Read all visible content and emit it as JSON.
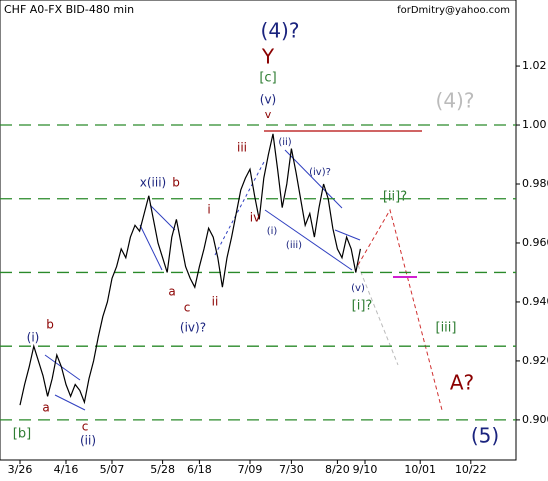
{
  "chart_data": {
    "type": "line",
    "title": "CHF A0-FX BID-480 min",
    "subtitle": "forDmitry@yahoo.com",
    "categories": [
      "3/26",
      null,
      null,
      null,
      null,
      null,
      null,
      null,
      null,
      null,
      "4/16",
      null,
      null,
      null,
      null,
      null,
      null,
      null,
      null,
      null,
      "5/07",
      null,
      null,
      null,
      null,
      null,
      null,
      null,
      null,
      null,
      null,
      "5/28",
      null,
      null,
      null,
      null,
      null,
      null,
      null,
      "6/18",
      null,
      null,
      null,
      null,
      null,
      null,
      null,
      null,
      null,
      null,
      "7/09",
      null,
      null,
      null,
      null,
      null,
      null,
      null,
      null,
      "7/30",
      null,
      null,
      null,
      null,
      null,
      null,
      null,
      null,
      null,
      "8/20",
      null,
      null,
      null,
      null,
      null,
      "9/10",
      null,
      null,
      null,
      null,
      null,
      null,
      null,
      null,
      null,
      null,
      null,
      "10/01",
      null,
      null,
      null,
      null,
      null,
      null,
      null,
      null,
      null,
      null,
      "10/22",
      null
    ],
    "series": [
      {
        "name": "CHF A0-FX",
        "color": "#000000",
        "values": [
          0.905,
          0.912,
          0.918,
          0.925,
          0.92,
          0.915,
          0.908,
          0.914,
          0.922,
          0.918,
          0.912,
          0.908,
          0.912,
          0.91,
          0.906,
          0.914,
          0.92,
          0.928,
          0.935,
          0.94,
          0.948,
          0.952,
          0.958,
          0.955,
          0.962,
          0.966,
          0.964,
          0.97,
          0.976,
          0.968,
          0.96,
          0.955,
          0.95,
          0.962,
          0.968,
          0.96,
          0.952,
          0.948,
          0.945,
          0.952,
          0.958,
          0.965,
          0.962,
          0.955,
          0.945,
          0.955,
          0.962,
          0.97,
          0.978,
          0.982,
          0.985,
          0.976,
          0.968,
          0.982,
          0.99,
          0.997,
          0.985,
          0.972,
          0.98,
          0.992,
          0.984,
          0.975,
          0.966,
          0.97,
          0.962,
          0.972,
          0.98,
          0.975,
          0.965,
          0.958,
          0.955,
          0.962,
          0.958,
          0.95,
          0.958,
          null,
          null,
          null,
          null,
          null,
          null,
          null,
          null,
          null,
          null,
          null,
          null,
          null,
          null,
          null,
          null,
          null,
          null,
          null,
          null,
          null,
          null,
          null,
          null,
          null
        ]
      }
    ],
    "ylim": [
      0.8864,
      1.0424
    ],
    "yticks": [
      {
        "value": 0.9,
        "label": "0.900"
      },
      {
        "value": 0.92,
        "label": "0.920"
      },
      {
        "value": 0.94,
        "label": "0.940"
      },
      {
        "value": 0.96,
        "label": "0.960"
      },
      {
        "value": 0.98,
        "label": "0.980"
      },
      {
        "value": 1.0,
        "label": "1.00"
      },
      {
        "value": 1.02,
        "label": "1.02"
      }
    ],
    "hlines": [
      1.0,
      0.975,
      0.95,
      0.925,
      0.9
    ],
    "annotations": [
      "(4)?",
      "Y",
      "[c]",
      "(v)",
      "v",
      "(4)?",
      "iii",
      "(ii)",
      "(iv)?",
      "x(iii)",
      "b",
      "i",
      "iv",
      "(i)",
      "(iii)",
      "[ii]?",
      "a",
      "ii",
      "c",
      "(iv)?",
      "(v)",
      "[i]?",
      "[iii]",
      "(i)",
      "b",
      "a",
      "c",
      "(ii)",
      "[b]",
      "A?",
      "(5)"
    ]
  }
}
